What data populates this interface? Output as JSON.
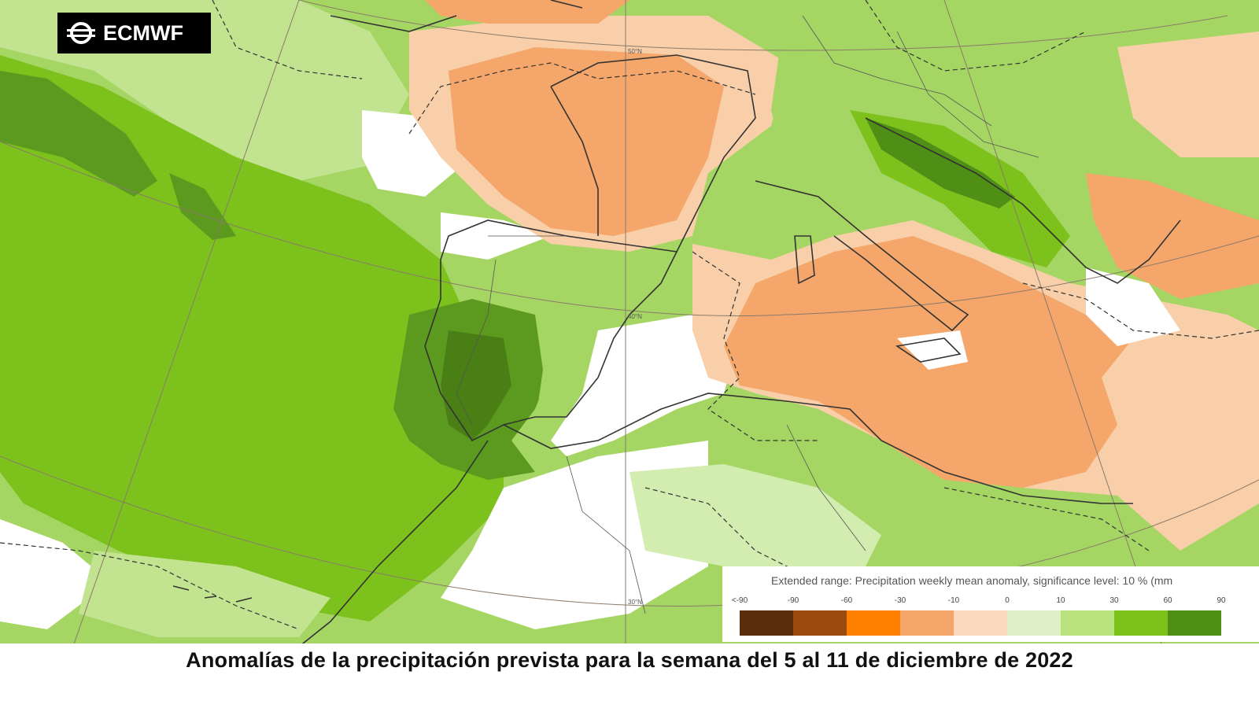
{
  "logo": {
    "text": "ECMWF",
    "icon": "ecmwf-logo-icon"
  },
  "map": {
    "graticule_labels": [
      "50°N",
      "40°N",
      "30°N"
    ],
    "colors": {
      "sea_dark_green": "#5c9a1f",
      "green_strong": "#7cc11c",
      "green_mid": "#a5d663",
      "green_light": "#d3ecb0",
      "orange_mid": "#f5a66a",
      "orange_light": "#f8cfa8",
      "white": "#ffffff"
    }
  },
  "legend": {
    "title": "Extended range: Precipitation weekly mean anomaly, significance level: 10 % (mm",
    "ticks": [
      "<-90",
      "-90",
      "-60",
      "-30",
      "-10",
      "0",
      "10",
      "30",
      "60",
      "90"
    ],
    "colors": [
      "#5a2e0a",
      "#9c4b10",
      "#ff7f00",
      "#f5a66a",
      "#fad9bd",
      "#ddf0c7",
      "#b8e27d",
      "#7cc11c",
      "#4f8f16"
    ]
  },
  "caption": "Anomalías de la precipitación prevista para la semana del 5 al 11 de diciembre de 2022"
}
